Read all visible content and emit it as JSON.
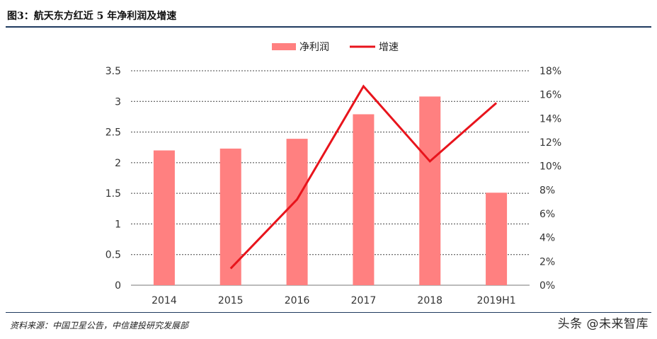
{
  "figure": {
    "title": "图3：航天东方红近 5 年净利润及增速",
    "source": "资料来源：中国卫星公告，中信建投研究发展部",
    "watermark": "头条 @未来智库"
  },
  "colors": {
    "bar": "#ff8080",
    "line": "#e8141c",
    "rule": "#1f3a5f",
    "grid": "#444444"
  },
  "chart_data": {
    "type": "bar+line",
    "categories": [
      "2014",
      "2015",
      "2016",
      "2017",
      "2018",
      "2019H1"
    ],
    "series": [
      {
        "name": "净利润",
        "type": "bar",
        "axis": "left",
        "values": [
          2.2,
          2.23,
          2.39,
          2.79,
          3.08,
          1.51
        ]
      },
      {
        "name": "增速",
        "type": "line",
        "axis": "right",
        "values": [
          null,
          1.4,
          7.2,
          16.7,
          10.4,
          15.3
        ]
      }
    ],
    "left_axis": {
      "min": 0,
      "max": 3.5,
      "ticks": [
        "0",
        "0.5",
        "1",
        "1.5",
        "2",
        "2.5",
        "3",
        "3.5"
      ]
    },
    "right_axis": {
      "min": 0,
      "max": 18,
      "unit": "%",
      "ticks": [
        "0%",
        "2%",
        "4%",
        "6%",
        "8%",
        "10%",
        "12%",
        "14%",
        "16%",
        "18%"
      ]
    },
    "grid": "dashed horizontal",
    "legend": {
      "position": "top-center",
      "entries": [
        "净利润",
        "增速"
      ]
    }
  }
}
